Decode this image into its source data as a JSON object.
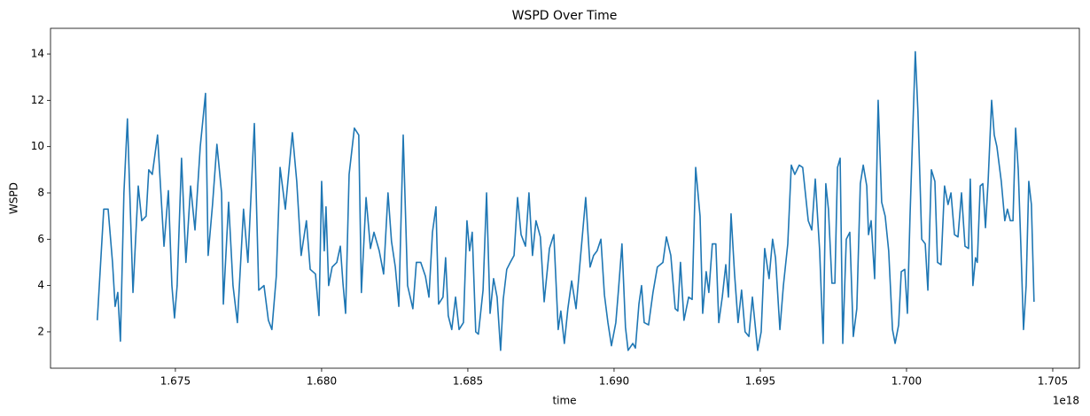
{
  "chart_data": {
    "type": "line",
    "title": "WSPD Over Time",
    "x_label": "time",
    "y_label": "WSPD",
    "x_offset_label": "1e18",
    "color": "#1f77b4",
    "grid": false,
    "xlim": [
      1.67073,
      1.70591
    ],
    "xticks": [
      1.675,
      {
        "value": 1.68,
        "label": "1.680"
      },
      1.685,
      {
        "value": 1.69,
        "label": "1.690"
      },
      1.695,
      {
        "value": 1.7,
        "label": "1.700"
      },
      1.705
    ],
    "ylim": [
      0.43,
      15.11
    ],
    "yticks": [
      2,
      4,
      6,
      8,
      10,
      12,
      14
    ],
    "x": [
      1.67233,
      1.67255,
      1.6727,
      1.67285,
      1.67294,
      1.67303,
      1.67312,
      1.67324,
      1.67336,
      1.67355,
      1.67373,
      1.67385,
      1.674,
      1.67409,
      1.67421,
      1.67439,
      1.67461,
      1.67476,
      1.67488,
      1.67497,
      1.67506,
      1.67521,
      1.67536,
      1.67552,
      1.67567,
      1.67585,
      1.67603,
      1.67612,
      1.67627,
      1.67642,
      1.67658,
      1.67664,
      1.67682,
      1.67697,
      1.67712,
      1.67733,
      1.67748,
      1.6777,
      1.67785,
      1.67803,
      1.67818,
      1.6783,
      1.67845,
      1.67858,
      1.67876,
      1.679,
      1.67915,
      1.6793,
      1.67948,
      1.67961,
      1.67979,
      1.67991,
      1.68,
      1.68009,
      1.68015,
      1.68024,
      1.68036,
      1.68052,
      1.68064,
      1.68073,
      1.68082,
      1.68094,
      1.68112,
      1.68127,
      1.68136,
      1.68152,
      1.68167,
      1.68179,
      1.68197,
      1.68212,
      1.68227,
      1.68239,
      1.68252,
      1.68264,
      1.68279,
      1.68294,
      1.68312,
      1.68324,
      1.68339,
      1.68355,
      1.68367,
      1.68379,
      1.68391,
      1.684,
      1.68415,
      1.68424,
      1.68433,
      1.68445,
      1.68458,
      1.6847,
      1.68485,
      1.68497,
      1.68506,
      1.68515,
      1.68527,
      1.68536,
      1.68552,
      1.68564,
      1.68576,
      1.68588,
      1.686,
      1.68612,
      1.68621,
      1.68633,
      1.68645,
      1.68658,
      1.6867,
      1.68682,
      1.68697,
      1.68709,
      1.68721,
      1.68733,
      1.68748,
      1.68761,
      1.68779,
      1.68794,
      1.68809,
      1.68818,
      1.6883,
      1.68842,
      1.68855,
      1.6887,
      1.68885,
      1.68903,
      1.68918,
      1.6893,
      1.68942,
      1.68955,
      1.68967,
      1.68979,
      1.68991,
      1.69006,
      1.69015,
      1.69027,
      1.69039,
      1.69048,
      1.69064,
      1.69073,
      1.69085,
      1.69094,
      1.69103,
      1.69118,
      1.69133,
      1.69148,
      1.69167,
      1.69179,
      1.69194,
      1.69209,
      1.69218,
      1.69227,
      1.69239,
      1.69255,
      1.69267,
      1.69279,
      1.69294,
      1.69303,
      1.69315,
      1.69324,
      1.69336,
      1.69348,
      1.69358,
      1.6937,
      1.69382,
      1.69391,
      1.694,
      1.69412,
      1.69424,
      1.69436,
      1.69448,
      1.69461,
      1.69473,
      1.69491,
      1.69503,
      1.69515,
      1.6953,
      1.69542,
      1.69552,
      1.69567,
      1.69579,
      1.69594,
      1.69606,
      1.69618,
      1.69633,
      1.69645,
      1.69664,
      1.69676,
      1.69688,
      1.69703,
      1.69715,
      1.69724,
      1.69733,
      1.69745,
      1.69755,
      1.69764,
      1.69773,
      1.69782,
      1.69794,
      1.69806,
      1.69818,
      1.6983,
      1.69842,
      1.69852,
      1.69864,
      1.6987,
      1.69879,
      1.69891,
      1.69903,
      1.69915,
      1.69927,
      1.69939,
      1.69952,
      1.69961,
      1.69973,
      1.69982,
      1.69994,
      1.70003,
      1.70012,
      1.7003,
      1.70039,
      1.70052,
      1.70064,
      1.70073,
      1.70085,
      1.70097,
      1.70106,
      1.70118,
      1.7013,
      1.70142,
      1.70152,
      1.70164,
      1.70176,
      1.70188,
      1.702,
      1.70212,
      1.70218,
      1.70227,
      1.70236,
      1.70242,
      1.70252,
      1.70261,
      1.7027,
      1.70279,
      1.70291,
      1.703,
      1.70309,
      1.70324,
      1.70336,
      1.70345,
      1.70355,
      1.70364,
      1.70373,
      1.70382,
      1.70391,
      1.704,
      1.70409,
      1.70418,
      1.70427,
      1.70436
    ],
    "values": [
      2.5,
      7.3,
      7.3,
      5,
      3.1,
      3.7,
      1.6,
      8,
      11.2,
      3.7,
      8.3,
      6.8,
      7,
      9,
      8.8,
      10.5,
      5.7,
      8.1,
      4,
      2.6,
      4,
      9.5,
      5,
      8.3,
      6.4,
      10,
      12.3,
      5.3,
      7.5,
      10.1,
      8,
      3.2,
      7.6,
      4,
      2.4,
      7.3,
      5,
      11,
      3.8,
      4,
      2.5,
      2.1,
      4.4,
      9.1,
      7.3,
      10.6,
      8.5,
      5.3,
      6.8,
      4.7,
      4.5,
      2.7,
      8.5,
      5.5,
      7.4,
      4,
      4.8,
      5,
      5.7,
      4.1,
      2.8,
      8.8,
      10.8,
      10.5,
      3.7,
      7.8,
      5.6,
      6.3,
      5.5,
      4.5,
      8,
      5.9,
      4.8,
      3.1,
      10.5,
      4,
      3,
      5,
      5,
      4.4,
      3.5,
      6.3,
      7.4,
      3.2,
      3.5,
      5.2,
      2.7,
      2.1,
      3.5,
      2.1,
      2.4,
      6.8,
      5.5,
      6.3,
      2,
      1.9,
      3.8,
      8,
      2.8,
      4.3,
      3.5,
      1.2,
      3.4,
      4.7,
      5,
      5.3,
      7.8,
      6.2,
      5.7,
      8,
      5.3,
      6.8,
      6.1,
      3.3,
      5.6,
      6.2,
      2.1,
      2.9,
      1.5,
      3,
      4.2,
      3,
      5.2,
      7.8,
      4.8,
      5.3,
      5.5,
      6,
      3.6,
      2.4,
      1.4,
      2.4,
      3.8,
      5.8,
      2.2,
      1.2,
      1.5,
      1.3,
      3.2,
      4,
      2.4,
      2.3,
      3.7,
      4.8,
      5,
      6.1,
      5.3,
      3,
      2.9,
      5,
      2.5,
      3.5,
      3.4,
      9.1,
      7,
      2.8,
      4.6,
      3.7,
      5.8,
      5.8,
      2.4,
      3.5,
      4.9,
      3.5,
      7.1,
      4.5,
      2.4,
      3.8,
      2,
      1.8,
      3.5,
      1.2,
      2,
      5.6,
      4.3,
      6,
      5.2,
      2.1,
      4,
      5.8,
      9.2,
      8.8,
      9.2,
      9.1,
      6.8,
      6.4,
      8.6,
      5.5,
      1.5,
      8.4,
      7.3,
      4.1,
      4.1,
      9.1,
      9.5,
      1.5,
      6,
      6.3,
      1.8,
      3,
      8.4,
      9.2,
      8.3,
      6.2,
      6.8,
      4.3,
      12,
      7.6,
      7,
      5.5,
      2.1,
      1.5,
      2.3,
      4.6,
      4.7,
      2.8,
      7,
      14.1,
      11.5,
      6,
      5.8,
      3.8,
      9,
      8.5,
      5,
      4.9,
      8.3,
      7.5,
      8,
      6.2,
      6.1,
      8,
      5.7,
      5.6,
      8.6,
      4,
      5.2,
      5,
      8.3,
      8.4,
      6.5,
      8.5,
      12,
      10.5,
      10,
      8.5,
      6.8,
      7.3,
      6.8,
      6.8,
      10.8,
      9,
      5.7,
      2.1,
      4,
      8.5,
      7.5,
      3.3
    ]
  }
}
